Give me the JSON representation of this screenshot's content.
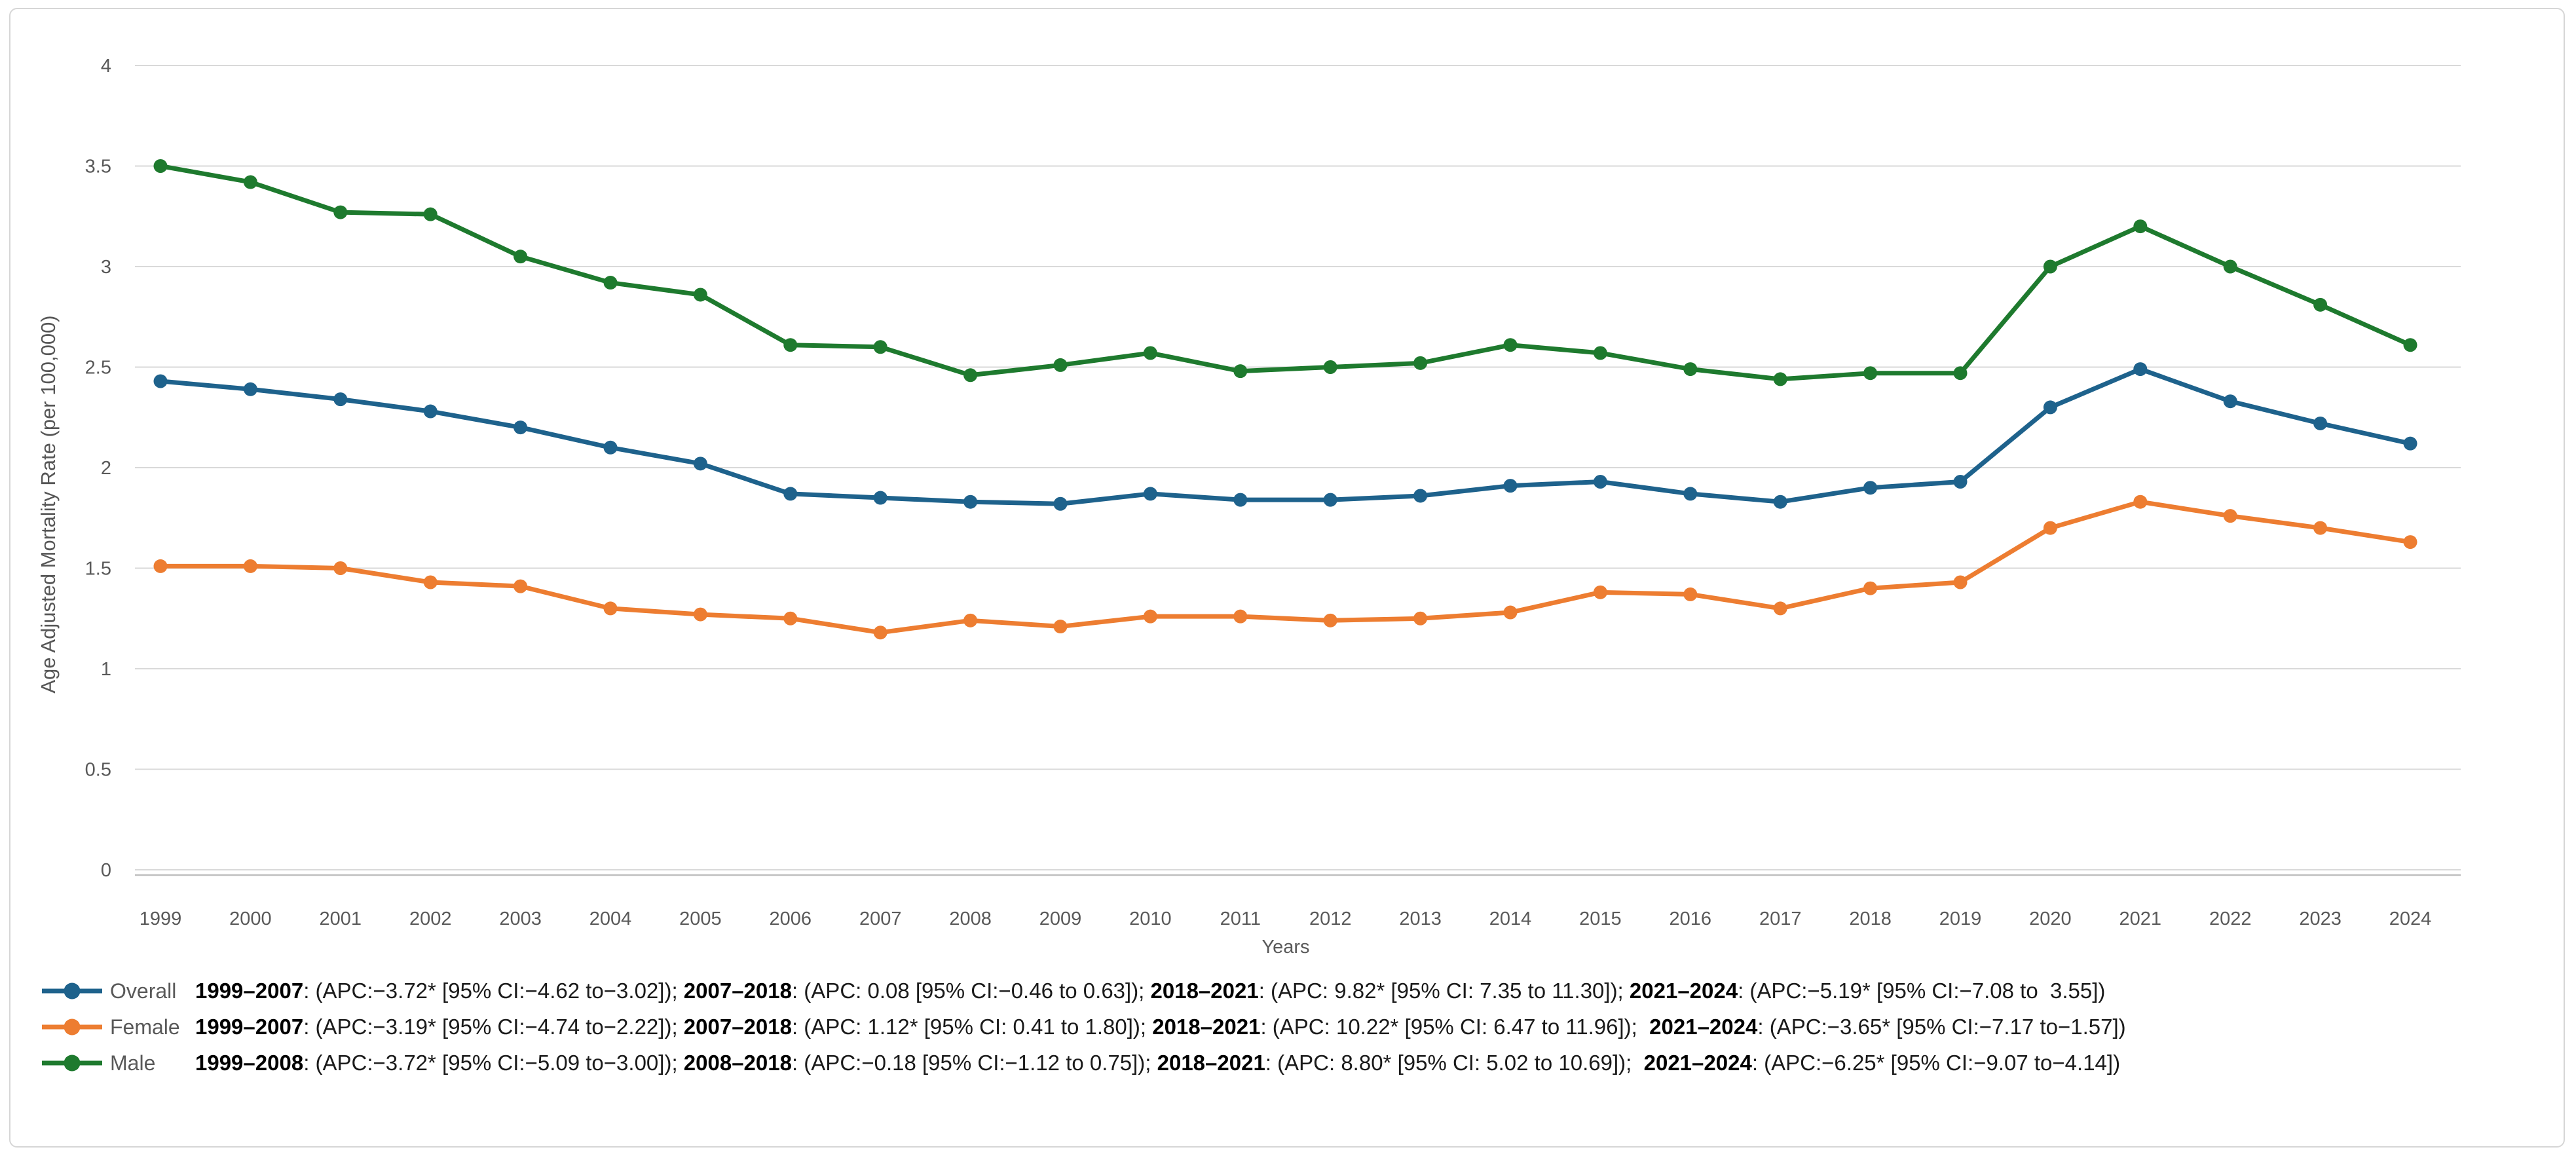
{
  "chart_data": {
    "type": "line",
    "title": "",
    "xlabel": "Years",
    "ylabel": "Age Adjusted Mortality Rate (per 100,000)",
    "x": [
      1999,
      2000,
      2001,
      2002,
      2003,
      2004,
      2005,
      2006,
      2007,
      2008,
      2009,
      2010,
      2011,
      2012,
      2013,
      2014,
      2015,
      2016,
      2017,
      2018,
      2019,
      2020,
      2021,
      2022,
      2023,
      2024
    ],
    "ylim": [
      0,
      4
    ],
    "ytick_values": [
      0,
      0.5,
      1,
      1.5,
      2,
      2.5,
      3,
      3.5,
      4
    ],
    "ytick_labels": [
      "0",
      "0.5",
      "1",
      "1.5",
      "2",
      "2.5",
      "3",
      "3.5",
      "4"
    ],
    "grid": true,
    "legend_position": "bottom-left",
    "series": [
      {
        "name": "Overall",
        "color": "#1E628C",
        "values": [
          2.43,
          2.39,
          2.34,
          2.28,
          2.2,
          2.1,
          2.02,
          1.87,
          1.85,
          1.83,
          1.82,
          1.87,
          1.84,
          1.84,
          1.86,
          1.91,
          1.93,
          1.87,
          1.83,
          1.9,
          1.93,
          2.3,
          2.49,
          2.33,
          2.22,
          2.12
        ]
      },
      {
        "name": "Female",
        "color": "#ED7D31",
        "values": [
          1.51,
          1.51,
          1.5,
          1.43,
          1.41,
          1.3,
          1.27,
          1.25,
          1.18,
          1.24,
          1.21,
          1.26,
          1.26,
          1.24,
          1.25,
          1.28,
          1.38,
          1.37,
          1.3,
          1.4,
          1.43,
          1.7,
          1.83,
          1.76,
          1.7,
          1.63
        ]
      },
      {
        "name": "Male",
        "color": "#1E7A2E",
        "values": [
          3.5,
          3.42,
          3.27,
          3.26,
          3.05,
          2.92,
          2.86,
          2.61,
          2.6,
          2.46,
          2.51,
          2.57,
          2.48,
          2.5,
          2.52,
          2.61,
          2.57,
          2.49,
          2.44,
          2.47,
          2.47,
          3.0,
          3.2,
          3.0,
          2.81,
          2.61
        ]
      }
    ]
  },
  "legend_rows": [
    {
      "label": "Overall",
      "color": "#1E628C",
      "segments": [
        {
          "text": "1999–2007",
          "bold": true
        },
        {
          "text": ": (APC:−3.72* [95% CI:−4.62 to−3.02]); ",
          "bold": false
        },
        {
          "text": "2007–2018",
          "bold": true
        },
        {
          "text": ": (APC: 0.08 [95% CI:−0.46 to 0.63]); ",
          "bold": false
        },
        {
          "text": "2018–2021",
          "bold": true
        },
        {
          "text": ": (APC: 9.82* [95% CI: 7.35 to 11.30]); ",
          "bold": false
        },
        {
          "text": "2021–2024",
          "bold": true
        },
        {
          "text": ": (APC:−5.19* [95% CI:−7.08 to  3.55])",
          "bold": false
        }
      ]
    },
    {
      "label": "Female",
      "color": "#ED7D31",
      "segments": [
        {
          "text": "1999–2007",
          "bold": true
        },
        {
          "text": ": (APC:−3.19* [95% CI:−4.74 to−2.22]); ",
          "bold": false
        },
        {
          "text": "2007–2018",
          "bold": true
        },
        {
          "text": ": (APC: 1.12* [95% CI: 0.41 to 1.80]); ",
          "bold": false
        },
        {
          "text": "2018–2021",
          "bold": true
        },
        {
          "text": ": (APC: 10.22* [95% CI: 6.47 to 11.96]);  ",
          "bold": false
        },
        {
          "text": "2021–2024",
          "bold": true
        },
        {
          "text": ": (APC:−3.65* [95% CI:−7.17 to−1.57])",
          "bold": false
        }
      ]
    },
    {
      "label": "Male",
      "color": "#1E7A2E",
      "segments": [
        {
          "text": "1999–2008",
          "bold": true
        },
        {
          "text": ": (APC:−3.72* [95% CI:−5.09 to−3.00]); ",
          "bold": false
        },
        {
          "text": "2008–2018",
          "bold": true
        },
        {
          "text": ": (APC:−0.18 [95% CI:−1.12 to 0.75]); ",
          "bold": false
        },
        {
          "text": "2018–2021",
          "bold": true
        },
        {
          "text": ": (APC: 8.80* [95% CI: 5.02 to 10.69]);  ",
          "bold": false
        },
        {
          "text": "2021–2024",
          "bold": true
        },
        {
          "text": ": (APC:−6.25* [95% CI:−9.07 to−4.14])",
          "bold": false
        }
      ]
    }
  ],
  "style": {
    "grid_color": "#D9D9D9",
    "axis_color": "#BFBFBF",
    "tick_color": "#595959",
    "background": "#FFFFFF",
    "card_border": "#D6D6D6"
  }
}
